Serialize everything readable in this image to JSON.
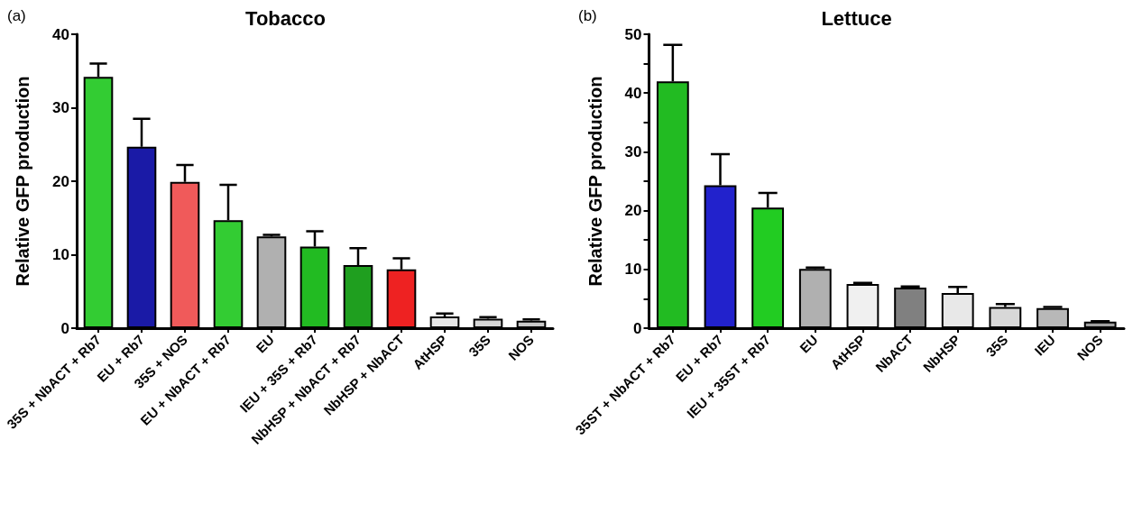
{
  "chart_data": [
    {
      "type": "bar",
      "title": "Tobacco",
      "ylabel": "Relative GFP production",
      "annotations": [
        "(a)"
      ],
      "categories": [
        "35S + NbACT + Rb7",
        "EU + Rb7",
        "35S + NOS",
        "EU + NbACT + Rb7",
        "EU",
        "IEU + 35S + Rb7",
        "NbHSP + NbACT + Rb7",
        "NbHSP + NbACT",
        "AtHSP",
        "35S",
        "NOS"
      ],
      "values": [
        34.2,
        24.7,
        19.9,
        14.7,
        12.5,
        11.1,
        8.6,
        8.0,
        1.6,
        1.3,
        1.0
      ],
      "errors": [
        [
          34.2,
          36.0
        ],
        [
          24.7,
          28.5
        ],
        [
          19.9,
          22.2
        ],
        [
          14.7,
          19.5
        ],
        [
          12.5,
          12.7
        ],
        [
          11.1,
          13.2
        ],
        [
          8.6,
          10.9
        ],
        [
          8.0,
          9.5
        ],
        [
          1.6,
          2.0
        ],
        [
          1.3,
          1.5
        ],
        [
          1.0,
          1.2
        ]
      ],
      "colors": [
        "#33cc33",
        "#1a1aa6",
        "#f05a5a",
        "#33cc33",
        "#b0b0b0",
        "#22bb22",
        "#1f9f1f",
        "#ee2222",
        "#e6e6e6",
        "#d6d6d6",
        "#c8c8c8"
      ],
      "ylim": [
        0,
        40
      ],
      "yticks": [
        0,
        10,
        20,
        30,
        40
      ],
      "grid": false
    },
    {
      "type": "bar",
      "title": "Lettuce",
      "ylabel": "Relative GFP production",
      "annotations": [
        "(b)"
      ],
      "categories": [
        "35ST + NbACT + Rb7",
        "EU + Rb7",
        "IEU + 35ST + Rb7",
        "EU",
        "AtHSP",
        "NbACT",
        "NbHSP",
        "35S",
        "IEU",
        "NOS"
      ],
      "values": [
        42.0,
        24.3,
        20.5,
        10.1,
        7.5,
        6.9,
        6.0,
        3.6,
        3.4,
        1.1
      ],
      "errors": [
        [
          42.0,
          48.2
        ],
        [
          24.3,
          29.6
        ],
        [
          20.5,
          23.0
        ],
        [
          10.1,
          10.3
        ],
        [
          7.5,
          7.7
        ],
        [
          6.9,
          7.1
        ],
        [
          6.0,
          7.0
        ],
        [
          3.6,
          4.1
        ],
        [
          3.4,
          3.6
        ],
        [
          1.1,
          1.2
        ]
      ],
      "colors": [
        "#22bb22",
        "#2222cc",
        "#22cc22",
        "#b0b0b0",
        "#f0f0f0",
        "#808080",
        "#e8e8e8",
        "#d8d8d8",
        "#b8b8b8",
        "#a0a0a0"
      ],
      "ylim": [
        0,
        50
      ],
      "yticks": [
        0,
        {
          "value": 5,
          "label": null
        },
        10,
        {
          "value": 15,
          "label": null
        },
        20,
        {
          "value": 25,
          "label": null
        },
        30,
        {
          "value": 35,
          "label": null
        },
        40,
        {
          "value": 45,
          "label": null
        },
        50
      ],
      "grid": false
    }
  ]
}
